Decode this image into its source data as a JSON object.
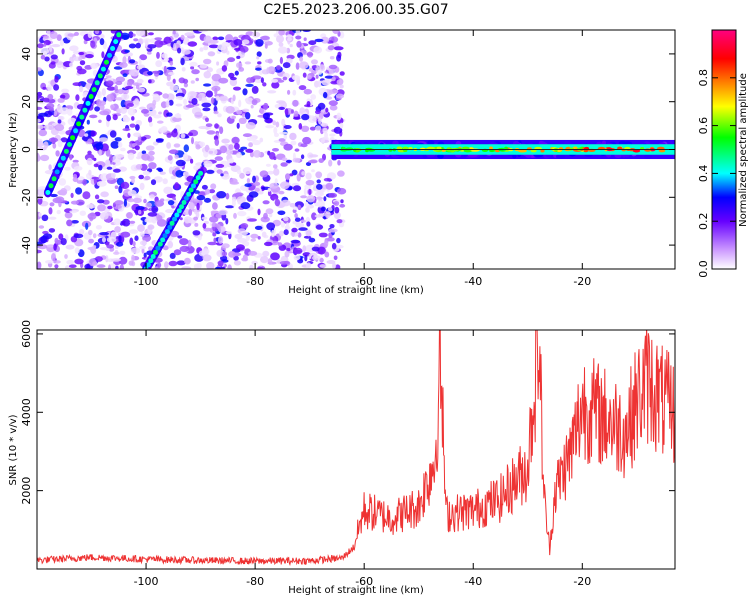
{
  "title": "C2E5.2023.206.00.35.G07",
  "chart_data": [
    {
      "type": "heatmap",
      "xlabel": "Height of straight line (km)",
      "ylabel": "Frequency (Hz)",
      "xlim": [
        -120,
        -3
      ],
      "ylim": [
        -50,
        50
      ],
      "xticks": [
        -100,
        -80,
        -60,
        -40,
        -20
      ],
      "yticks": [
        -40,
        -20,
        0,
        20,
        40
      ],
      "colorbar": {
        "label": "Normalized spectral amplitude",
        "range": [
          0.0,
          1.0
        ],
        "ticks": [
          "0.0",
          "0.2",
          "0.4",
          "0.6",
          "0.8"
        ],
        "tick_values": [
          0.0,
          0.2,
          0.4,
          0.6,
          0.8
        ],
        "colors": [
          "#ffffff",
          "#cc99ff",
          "#6600ff",
          "#0000ff",
          "#00ffff",
          "#00ff00",
          "#ffff00",
          "#ff8000",
          "#ff0000",
          "#ff0080"
        ]
      },
      "features": [
        {
          "name": "diagonal-trace-upper",
          "x": [
            -118,
            -105
          ],
          "y": [
            -18,
            48
          ],
          "peak_amplitude": 0.5
        },
        {
          "name": "diagonal-trace-lower",
          "x": [
            -100,
            -90
          ],
          "y": [
            -50,
            -10
          ],
          "peak_amplitude": 0.4
        },
        {
          "name": "horizontal-trace",
          "x": [
            -66,
            -3
          ],
          "y": [
            0,
            0
          ],
          "peak_amplitude": 0.95
        },
        {
          "name": "noise-field",
          "x": [
            -120,
            -64
          ],
          "y": [
            -50,
            50
          ],
          "peak_amplitude": 0.3
        }
      ]
    },
    {
      "type": "line",
      "xlabel": "Height of straight line (km)",
      "ylabel": "SNR (10 * v/v)",
      "xlim": [
        -120,
        -3
      ],
      "ylim": [
        0,
        6100
      ],
      "xticks": [
        -100,
        -80,
        -60,
        -40,
        -20
      ],
      "yticks": [
        2000,
        4000,
        6000
      ],
      "color": "#ee3333",
      "x": [
        -120,
        -110,
        -100,
        -90,
        -80,
        -70,
        -64,
        -62,
        -60,
        -55,
        -50,
        -47,
        -46,
        -45,
        -40,
        -35,
        -30,
        -28,
        -27,
        -26,
        -25,
        -22,
        -20,
        -15,
        -12,
        -10,
        -8,
        -5,
        -3
      ],
      "y": [
        220,
        300,
        250,
        220,
        200,
        210,
        280,
        550,
        1500,
        1300,
        1600,
        2800,
        5300,
        1400,
        1500,
        1800,
        2600,
        6000,
        1800,
        500,
        2000,
        3000,
        4200,
        3800,
        3500,
        4300,
        4800,
        4200,
        4000
      ]
    }
  ]
}
